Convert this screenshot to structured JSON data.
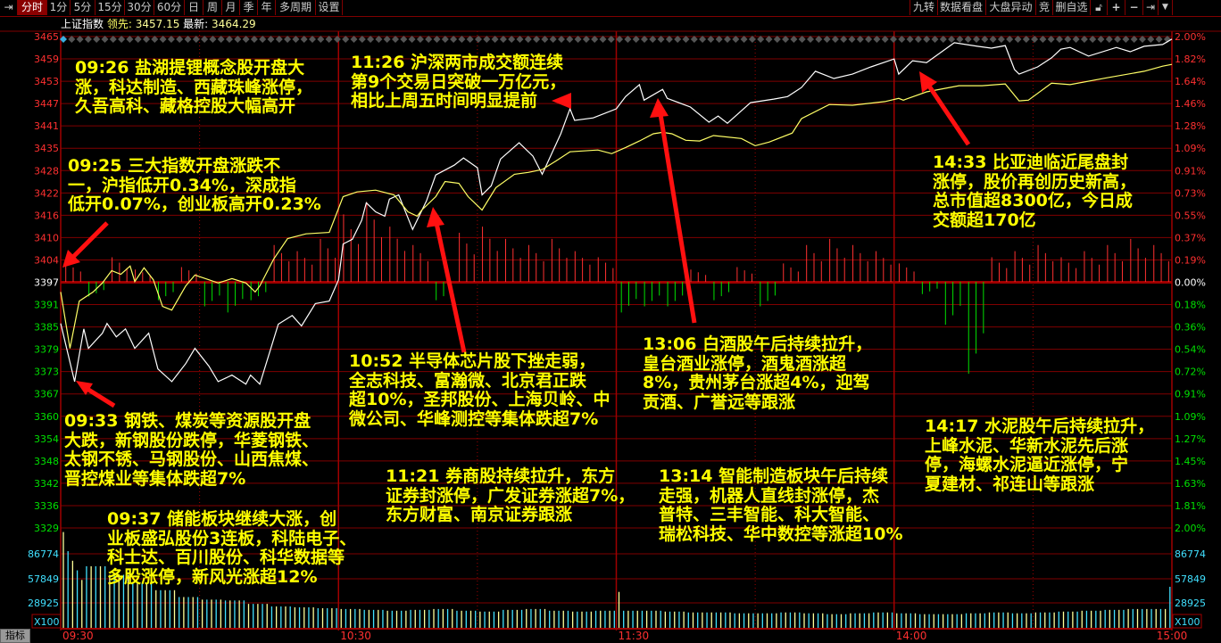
{
  "toolbar": {
    "left_items": [
      {
        "label": "分时",
        "selected": true
      },
      {
        "label": "1分"
      },
      {
        "label": "5分"
      },
      {
        "label": "15分"
      },
      {
        "label": "30分"
      },
      {
        "label": "60分"
      },
      {
        "label": "日"
      },
      {
        "label": "周"
      },
      {
        "label": "月"
      },
      {
        "label": "季"
      },
      {
        "label": "年"
      },
      {
        "label": "多周期"
      },
      {
        "label": "设置"
      }
    ],
    "right_items": [
      {
        "label": "九转"
      },
      {
        "label": "数据看盘"
      },
      {
        "label": "大盘异动"
      },
      {
        "label": "竞"
      },
      {
        "label": "删自选"
      }
    ],
    "icons": [
      "expand-icon",
      "lock-icon",
      "plus-icon",
      "minus-icon",
      "collapse-icon",
      "dropdown-icon"
    ]
  },
  "header": {
    "index_name": "上证指数",
    "lead_label": "领先:",
    "lead_value": "3457.15",
    "latest_label": "最新:",
    "latest_value": "3464.29"
  },
  "indicator_button": "指标",
  "colors": {
    "up": "#ff3030",
    "down": "#00e000",
    "index_line": "#ffffff",
    "lead_line": "#ffff66",
    "grid": "#800000",
    "volume_a": "#ffff99",
    "volume_b": "#40e0ff",
    "annotation": "#ffff00",
    "arrow": "#ff1010"
  },
  "chart_data": {
    "type": "line",
    "title": "",
    "preclose": 3397,
    "ylim": [
      3329,
      3465
    ],
    "price_ticks": [
      "3465",
      "3459",
      "3453",
      "3447",
      "3441",
      "3435",
      "3428",
      "3422",
      "3416",
      "3410",
      "3404",
      "3397",
      "3391",
      "3385",
      "3379",
      "3373",
      "3367",
      "3360",
      "3354",
      "3348",
      "3342",
      "3336",
      "3329"
    ],
    "percent_ticks": [
      "2.00%",
      "1.82%",
      "1.64%",
      "1.46%",
      "1.28%",
      "1.09%",
      "0.91%",
      "0.73%",
      "0.55%",
      "0.37%",
      "0.19%",
      "0.00%",
      "0.18%",
      "0.36%",
      "0.54%",
      "0.72%",
      "0.91%",
      "1.09%",
      "1.27%",
      "1.45%",
      "1.63%",
      "1.81%",
      "2.00%"
    ],
    "time_ticks": [
      "09:30",
      "10:30",
      "11:30",
      "14:00",
      "15:00"
    ],
    "volume_ticks": [
      "86774",
      "57849",
      "28925"
    ],
    "volume_unit": "X100",
    "series": [
      {
        "key": "index",
        "points": [
          [
            "09:30",
            3385.6
          ],
          [
            "09:33",
            3369.5
          ],
          [
            "09:35",
            3384.1
          ],
          [
            "09:36",
            3378.7
          ],
          [
            "09:39",
            3382.9
          ],
          [
            "09:40",
            3385.6
          ],
          [
            "09:42",
            3381.9
          ],
          [
            "09:44",
            3384.1
          ],
          [
            "09:46",
            3378.7
          ],
          [
            "09:49",
            3382.9
          ],
          [
            "09:51",
            3373.0
          ],
          [
            "09:54",
            3369.5
          ],
          [
            "09:57",
            3374.5
          ],
          [
            "09:59",
            3378.7
          ],
          [
            "10:02",
            3373.8
          ],
          [
            "10:04",
            3369.5
          ],
          [
            "10:07",
            3371.3
          ],
          [
            "10:10",
            3368.8
          ],
          [
            "10:11",
            3371.3
          ],
          [
            "10:13",
            3368.8
          ],
          [
            "10:17",
            3385.4
          ],
          [
            "10:20",
            3387.8
          ],
          [
            "10:22",
            3384.9
          ],
          [
            "10:25",
            3391.1
          ],
          [
            "10:28",
            3391.8
          ],
          [
            "10:30",
            3397.7
          ],
          [
            "10:31",
            3407.6
          ],
          [
            "10:33",
            3408.9
          ],
          [
            "10:35",
            3414.1
          ],
          [
            "10:36",
            3419.0
          ],
          [
            "10:38",
            3416.5
          ],
          [
            "10:40",
            3415.3
          ],
          [
            "10:41",
            3420.0
          ],
          [
            "10:43",
            3421.2
          ],
          [
            "10:46",
            3411.6
          ],
          [
            "10:49",
            3419.5
          ],
          [
            "10:51",
            3426.7
          ],
          [
            "10:55",
            3429.4
          ],
          [
            "10:57",
            3431.4
          ],
          [
            "11:00",
            3428.7
          ],
          [
            "11:01",
            3421.2
          ],
          [
            "11:03",
            3423.7
          ],
          [
            "11:05",
            3431.1
          ],
          [
            "11:09",
            3435.6
          ],
          [
            "11:12",
            3431.9
          ],
          [
            "11:14",
            3426.9
          ],
          [
            "11:18",
            3438.1
          ],
          [
            "11:20",
            3445.0
          ],
          [
            "11:21",
            3441.8
          ],
          [
            "11:25",
            3442.5
          ],
          [
            "11:30",
            3445.0
          ],
          [
            "13:02",
            3448.4
          ],
          [
            "13:05",
            3451.7
          ],
          [
            "13:06",
            3447.4
          ],
          [
            "13:10",
            3450.4
          ],
          [
            "13:11",
            3447.9
          ],
          [
            "13:16",
            3445.5
          ],
          [
            "13:20",
            3441.3
          ],
          [
            "13:22",
            3443.0
          ],
          [
            "13:24",
            3441.0
          ],
          [
            "13:29",
            3446.7
          ],
          [
            "13:34",
            3447.7
          ],
          [
            "13:37",
            3448.4
          ],
          [
            "13:40",
            3450.9
          ],
          [
            "13:43",
            3455.4
          ],
          [
            "13:47",
            3453.4
          ],
          [
            "13:51",
            3454.6
          ],
          [
            "13:55",
            3456.6
          ],
          [
            "14:00",
            3458.8
          ],
          [
            "14:01",
            3454.6
          ],
          [
            "14:04",
            3458.3
          ],
          [
            "14:07",
            3457.8
          ],
          [
            "14:13",
            3463.3
          ],
          [
            "14:18",
            3462.3
          ],
          [
            "14:21",
            3461.8
          ],
          [
            "14:24",
            3462.5
          ],
          [
            "14:26",
            3455.9
          ],
          [
            "14:27",
            3454.6
          ],
          [
            "14:31",
            3456.6
          ],
          [
            "14:34",
            3459.1
          ],
          [
            "14:36",
            3461.5
          ],
          [
            "14:38",
            3462.0
          ],
          [
            "14:42",
            3459.6
          ],
          [
            "14:48",
            3462.0
          ],
          [
            "14:51",
            3460.8
          ],
          [
            "14:54",
            3462.3
          ],
          [
            "14:58",
            3462.8
          ],
          [
            "15:00",
            3464.3
          ]
        ]
      },
      {
        "key": "lead",
        "points": [
          [
            "09:30",
            3394.3
          ],
          [
            "09:32",
            3378.7
          ],
          [
            "09:34",
            3391.8
          ],
          [
            "09:37",
            3394.3
          ],
          [
            "09:39",
            3396.8
          ],
          [
            "09:41",
            3400.2
          ],
          [
            "09:43",
            3399.2
          ],
          [
            "09:45",
            3401.5
          ],
          [
            "09:46",
            3397.2
          ],
          [
            "09:48",
            3401.0
          ],
          [
            "09:50",
            3397.7
          ],
          [
            "09:52",
            3390.3
          ],
          [
            "09:54",
            3389.3
          ],
          [
            "09:57",
            3396.0
          ],
          [
            "09:59",
            3399.0
          ],
          [
            "10:02",
            3397.7
          ],
          [
            "10:04",
            3396.8
          ],
          [
            "10:07",
            3398.0
          ],
          [
            "10:10",
            3396.8
          ],
          [
            "10:12",
            3394.3
          ],
          [
            "10:13",
            3396.0
          ],
          [
            "10:16",
            3403.4
          ],
          [
            "10:19",
            3409.1
          ],
          [
            "10:23",
            3410.4
          ],
          [
            "10:28",
            3410.8
          ],
          [
            "10:31",
            3420.7
          ],
          [
            "10:34",
            3422.0
          ],
          [
            "10:38",
            3422.5
          ],
          [
            "10:42",
            3421.2
          ],
          [
            "10:45",
            3416.5
          ],
          [
            "10:47",
            3415.3
          ],
          [
            "10:48",
            3417.0
          ],
          [
            "10:51",
            3420.7
          ],
          [
            "10:53",
            3424.9
          ],
          [
            "10:56",
            3424.4
          ],
          [
            "10:58",
            3420.7
          ],
          [
            "11:01",
            3417.0
          ],
          [
            "11:04",
            3423.2
          ],
          [
            "11:08",
            3426.9
          ],
          [
            "11:11",
            3427.4
          ],
          [
            "11:14",
            3428.2
          ],
          [
            "11:17",
            3430.6
          ],
          [
            "11:20",
            3433.1
          ],
          [
            "11:26",
            3433.6
          ],
          [
            "11:29",
            3432.6
          ],
          [
            "13:02",
            3434.3
          ],
          [
            "13:05",
            3436.1
          ],
          [
            "13:08",
            3438.1
          ],
          [
            "13:10",
            3438.5
          ],
          [
            "13:12",
            3438.1
          ],
          [
            "13:15",
            3436.3
          ],
          [
            "13:18",
            3436.1
          ],
          [
            "13:21",
            3437.6
          ],
          [
            "13:27",
            3436.8
          ],
          [
            "13:30",
            3434.8
          ],
          [
            "13:33",
            3435.8
          ],
          [
            "13:38",
            3438.3
          ],
          [
            "13:40",
            3442.3
          ],
          [
            "13:46",
            3446.2
          ],
          [
            "13:51",
            3446.0
          ],
          [
            "13:58",
            3447.0
          ],
          [
            "14:01",
            3447.9
          ],
          [
            "14:02",
            3447.4
          ],
          [
            "14:07",
            3449.7
          ],
          [
            "14:14",
            3451.4
          ],
          [
            "14:19",
            3451.4
          ],
          [
            "14:24",
            3451.9
          ],
          [
            "14:27",
            3447.2
          ],
          [
            "14:29",
            3447.4
          ],
          [
            "14:34",
            3452.1
          ],
          [
            "14:38",
            3451.7
          ],
          [
            "14:46",
            3453.6
          ],
          [
            "14:54",
            3455.4
          ],
          [
            "14:58",
            3456.8
          ],
          [
            "15:00",
            3457.3
          ]
        ]
      }
    ],
    "breadth_percent_5min": [
      0.15,
      -0.12,
      0.2,
      0.1,
      -0.15,
      0.12,
      -0.2,
      -0.25,
      -0.15,
      0.3,
      0.25,
      0.35,
      0.55,
      0.65,
      0.45,
      0.3,
      -0.15,
      0.4,
      0.45,
      0.35,
      0.3,
      0.35,
      0.25,
      0.2,
      -0.25,
      -0.2,
      -0.2,
      0.1,
      -0.15,
      0.12,
      -0.2,
      0.15,
      0.3,
      0.35,
      0.3,
      0.25,
      0.15,
      -0.1,
      -0.35,
      -0.75,
      0.2,
      0.25,
      0.3,
      0.2,
      0.25,
      0.3,
      0.35,
      0.3
    ],
    "volume_5min": [
      112000,
      72000,
      62000,
      52000,
      44000,
      36000,
      33000,
      32000,
      28000,
      25000,
      24000,
      23000,
      22000,
      21000,
      20000,
      21000,
      22000,
      20000,
      19000,
      21000,
      22000,
      20000,
      19000,
      20000,
      42000,
      20000,
      19000,
      18000,
      18000,
      17000,
      17000,
      18000,
      17000,
      16000,
      17000,
      18000,
      17000,
      16000,
      16000,
      17000,
      18000,
      17000,
      18000,
      19000,
      20000,
      21000,
      22000,
      48000
    ]
  },
  "annotations": [
    {
      "lines": [
        "09:26 盐湖提锂概念股开盘大",
        "涨，科达制造、西藏珠峰涨停，",
        "久吾高科、藏格控股大幅高开"
      ]
    },
    {
      "lines": [
        "09:25 三大指数开盘涨跌不",
        "一，沪指低开0.34%，深成指",
        "低开0.07%，创业板高开0.23%"
      ]
    },
    {
      "lines": [
        "11:26 沪深两市成交额连续",
        "第9个交易日突破一万亿元，",
        "相比上周五时间明显提前"
      ]
    },
    {
      "lines": [
        "10:52 半导体芯片股下挫走弱，",
        "全志科技、富瀚微、北京君正跌",
        "超10%，圣邦股份、上海贝岭、中",
        "微公司、华峰测控等集体跌超7%"
      ]
    },
    {
      "lines": [
        "13:06 白酒股午后持续拉升，",
        "皇台酒业涨停，酒鬼酒涨超",
        "8%，贵州茅台涨超4%，迎驾",
        "贡酒、广誉远等跟涨"
      ]
    },
    {
      "lines": [
        "14:33 比亚迪临近尾盘封",
        "涨停，股价再创历史新高，",
        "总市值超8300亿，今日成",
        "交额超170亿"
      ]
    },
    {
      "lines": [
        "09:33 钢铁、煤炭等资源股开盘",
        "大跌，新钢股份跌停，华菱钢铁、",
        "太钢不锈、马钢股份、山西焦煤、",
        "晋控煤业等集体跌超7%"
      ]
    },
    {
      "lines": [
        "09:37 储能板块继续大涨，创",
        "业板盛弘股份3连板，科陆电子、",
        "科士达、百川股份、科华数据等",
        "多股涨停，新风光涨超12%"
      ]
    },
    {
      "lines": [
        "11:21 券商股持续拉升，东方",
        "证券封涨停，广发证券涨超7%，",
        "东方财富、南京证券跟涨"
      ]
    },
    {
      "lines": [
        "13:14 智能制造板块午后持续",
        "走强，机器人直线封涨停，杰",
        "普特、三丰智能、科大智能、",
        "瑞松科技、华中数控等涨超10%"
      ]
    },
    {
      "lines": [
        "14:17 水泥股午后持续拉升，",
        "上峰水泥、华新水泥先后涨",
        "停，海螺水泥逼近涨停，宁",
        "夏建材、祁连山等跟涨"
      ]
    }
  ]
}
